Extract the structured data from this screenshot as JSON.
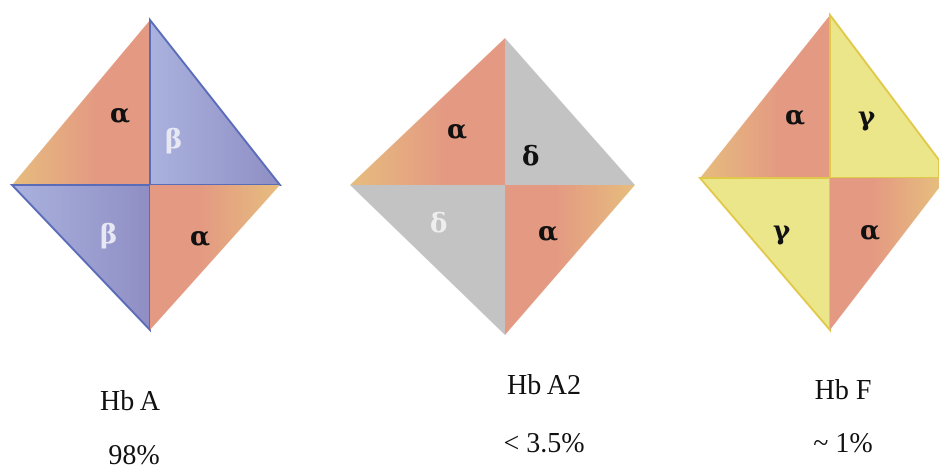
{
  "colors": {
    "alpha": "#e49a82",
    "beta": "#a4a2cf",
    "delta": "#c3c3c3",
    "gamma": "#ece68a",
    "beta_edge": "#5a6bb8",
    "gamma_edge": "#e0c94a",
    "delta_edge": "#bdbdbd"
  },
  "diamonds": [
    {
      "name": "Hb A",
      "percent": "98%",
      "quadrants": [
        {
          "greek": "α",
          "fill_key": "alpha"
        },
        {
          "greek": "β",
          "fill_key": "beta"
        },
        {
          "greek": "β",
          "fill_key": "beta"
        },
        {
          "greek": "α",
          "fill_key": "alpha"
        }
      ]
    },
    {
      "name": "Hb A2",
      "percent": "< 3.5%",
      "quadrants": [
        {
          "greek": "α",
          "fill_key": "alpha"
        },
        {
          "greek": "δ",
          "fill_key": "delta"
        },
        {
          "greek": "δ",
          "fill_key": "delta"
        },
        {
          "greek": "α",
          "fill_key": "alpha"
        }
      ]
    },
    {
      "name": "Hb F",
      "percent": "~ 1%",
      "quadrants": [
        {
          "greek": "α",
          "fill_key": "alpha"
        },
        {
          "greek": "γ",
          "fill_key": "gamma"
        },
        {
          "greek": "γ",
          "fill_key": "gamma"
        },
        {
          "greek": "α",
          "fill_key": "alpha"
        }
      ]
    }
  ]
}
